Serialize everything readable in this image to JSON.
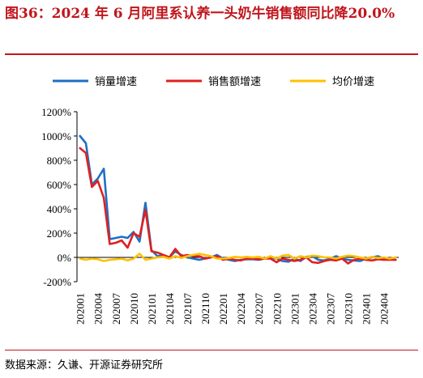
{
  "title": "图36：2024 年 6 月阿里系认养一头奶牛销售额同比降20.0%",
  "source": "数据来源：久谦、开源证券研究所",
  "chart_data": {
    "type": "line",
    "ylim": [
      -200,
      1200
    ],
    "yticks": [
      "1200%",
      "1000%",
      "800%",
      "600%",
      "400%",
      "200%",
      "0%",
      "-200%"
    ],
    "ytick_values": [
      1200,
      1000,
      800,
      600,
      400,
      200,
      0,
      -200
    ],
    "legend_position": "top",
    "grid": false,
    "x": [
      "202001",
      "202002",
      "202003",
      "202004",
      "202005",
      "202006",
      "202007",
      "202008",
      "202009",
      "202010",
      "202011",
      "202012",
      "202101",
      "202102",
      "202103",
      "202104",
      "202105",
      "202106",
      "202107",
      "202108",
      "202109",
      "202110",
      "202111",
      "202112",
      "202201",
      "202202",
      "202203",
      "202204",
      "202205",
      "202206",
      "202207",
      "202208",
      "202209",
      "202210",
      "202211",
      "202212",
      "202301",
      "202302",
      "202303",
      "202304",
      "202305",
      "202306",
      "202307",
      "202308",
      "202309",
      "202310",
      "202311",
      "202312",
      "202401",
      "202402",
      "202403",
      "202404",
      "202405",
      "202406"
    ],
    "x_tick_labels": [
      "202001",
      "202004",
      "202007",
      "202010",
      "202101",
      "202104",
      "202107",
      "202110",
      "202201",
      "202204",
      "202207",
      "202210",
      "202301",
      "202304",
      "202307",
      "202310",
      "202401",
      "202404"
    ],
    "series": [
      {
        "name": "销量增速",
        "color": "#1f6fc5",
        "values": [
          1000,
          940,
          600,
          650,
          730,
          150,
          160,
          170,
          160,
          210,
          130,
          450,
          60,
          10,
          20,
          0,
          50,
          20,
          0,
          -10,
          -20,
          -10,
          0,
          20,
          -10,
          -20,
          -30,
          -20,
          -15,
          -15,
          -20,
          -10,
          -5,
          -10,
          -30,
          -35,
          -10,
          -30,
          5,
          10,
          -20,
          -25,
          -10,
          10,
          -10,
          -20,
          -25,
          -30,
          -10,
          0,
          10,
          -10,
          -15,
          -20
        ]
      },
      {
        "name": "销售额增速",
        "color": "#e02020",
        "values": [
          900,
          860,
          580,
          630,
          490,
          110,
          120,
          140,
          80,
          200,
          170,
          390,
          50,
          40,
          20,
          0,
          70,
          10,
          20,
          10,
          10,
          -10,
          0,
          10,
          -20,
          -10,
          -20,
          -25,
          -10,
          -10,
          -15,
          -10,
          -10,
          -40,
          -10,
          -20,
          -30,
          -20,
          0,
          -40,
          -45,
          -30,
          -20,
          -25,
          -10,
          -50,
          -20,
          -10,
          -20,
          -25,
          -15,
          -20,
          -20,
          -20
        ]
      },
      {
        "name": "均价增速",
        "color": "#ffc000",
        "values": [
          -10,
          -20,
          -10,
          -15,
          -30,
          -20,
          -15,
          -10,
          -25,
          -10,
          30,
          -20,
          -10,
          0,
          5,
          -10,
          10,
          -5,
          10,
          20,
          30,
          20,
          10,
          -10,
          -10,
          -5,
          5,
          0,
          5,
          0,
          5,
          -10,
          10,
          -10,
          15,
          20,
          -10,
          10,
          0,
          15,
          10,
          0,
          0,
          -10,
          5,
          15,
          10,
          0,
          -10,
          5,
          -5,
          0,
          -10,
          0
        ]
      }
    ]
  }
}
